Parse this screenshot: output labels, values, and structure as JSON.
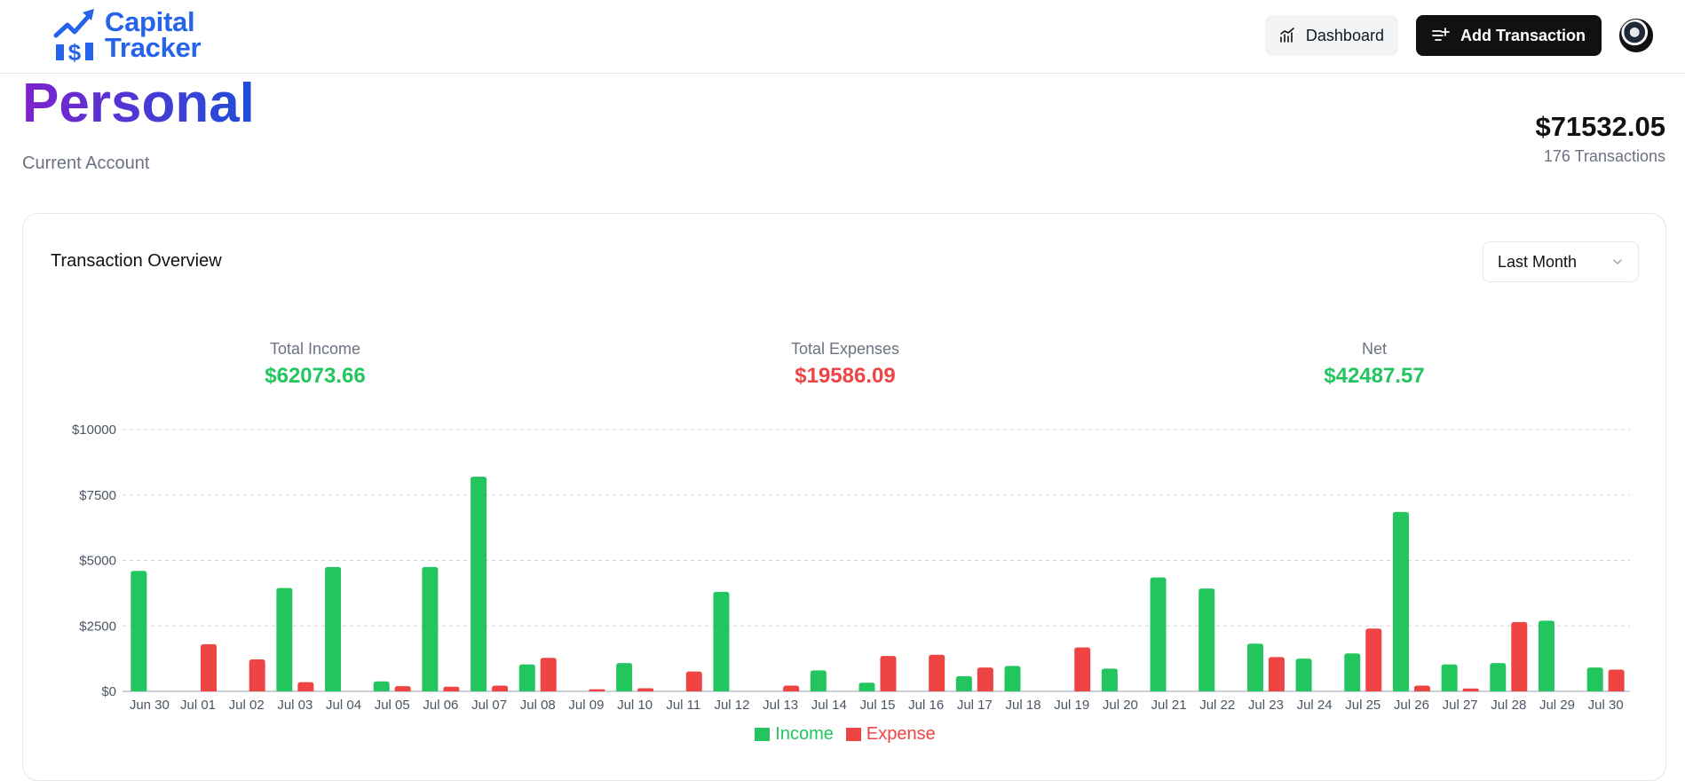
{
  "brand": {
    "line1": "Capital",
    "line2": "Tracker"
  },
  "nav": {
    "dashboard_label": "Dashboard",
    "add_label": "Add Transaction"
  },
  "account": {
    "name": "Personal",
    "type": "Current Account",
    "balance": "$71532.05",
    "transactions": "176 Transactions"
  },
  "overview": {
    "title": "Transaction Overview",
    "range": "Last Month",
    "income_label": "Total Income",
    "income_value": "$62073.66",
    "expenses_label": "Total Expenses",
    "expenses_value": "$19586.09",
    "net_label": "Net",
    "net_value": "$42487.57"
  },
  "colors": {
    "income": "#22c55e",
    "expense": "#ef4444",
    "accent": "#2563eb"
  },
  "chart_data": {
    "type": "bar",
    "categories": [
      "Jun 30",
      "Jul 01",
      "Jul 02",
      "Jul 03",
      "Jul 04",
      "Jul 05",
      "Jul 06",
      "Jul 07",
      "Jul 08",
      "Jul 09",
      "Jul 10",
      "Jul 11",
      "Jul 12",
      "Jul 13",
      "Jul 14",
      "Jul 15",
      "Jul 16",
      "Jul 17",
      "Jul 18",
      "Jul 19",
      "Jul 20",
      "Jul 21",
      "Jul 22",
      "Jul 23",
      "Jul 24",
      "Jul 25",
      "Jul 26",
      "Jul 27",
      "Jul 28",
      "Jul 29",
      "Jul 30"
    ],
    "series": [
      {
        "name": "Income",
        "values": [
          4600,
          0,
          0,
          3950,
          4750,
          380,
          4750,
          8200,
          1030,
          0,
          1080,
          0,
          3800,
          0,
          800,
          330,
          0,
          580,
          970,
          0,
          870,
          4350,
          3930,
          1820,
          1250,
          1450,
          6850,
          1030,
          1080,
          2700,
          910
        ]
      },
      {
        "name": "Expense",
        "values": [
          0,
          1800,
          1220,
          350,
          0,
          200,
          180,
          220,
          1280,
          80,
          120,
          760,
          0,
          220,
          0,
          1350,
          1400,
          910,
          0,
          1680,
          0,
          0,
          0,
          1310,
          0,
          2400,
          220,
          110,
          2650,
          0,
          830
        ]
      }
    ],
    "yticks": [
      "$0",
      "$2500",
      "$5000",
      "$7500",
      "$10000"
    ],
    "ylim": [
      0,
      10000
    ],
    "grid": true,
    "legend": "bottom-center"
  }
}
